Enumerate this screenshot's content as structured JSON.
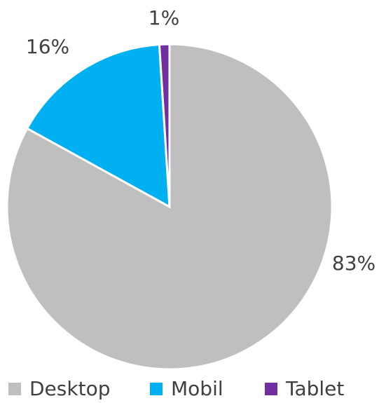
{
  "chart_data": {
    "type": "pie",
    "categories": [
      "Desktop",
      "Mobil",
      "Tablet"
    ],
    "values": [
      83,
      16,
      1
    ],
    "value_labels": [
      "83%",
      "16%",
      "1%"
    ],
    "colors": [
      "#bfbfbf",
      "#00b0f0",
      "#7030a0"
    ],
    "legend": "bottom"
  }
}
